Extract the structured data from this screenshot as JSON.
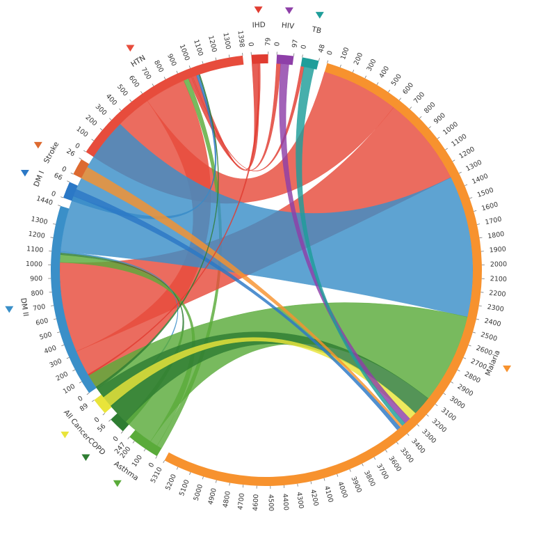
{
  "diagram": {
    "type": "chord",
    "nodes": [
      {
        "id": "IHD",
        "label": "IHD",
        "total": 79,
        "color": "#e03c31",
        "ticks": [
          0,
          79
        ]
      },
      {
        "id": "HIV",
        "label": "HIV",
        "total": 97,
        "color": "#8e3fa8",
        "ticks": [
          0,
          97
        ]
      },
      {
        "id": "TB",
        "label": "TB",
        "total": 48,
        "color": "#1f9e9a",
        "ticks": [
          0,
          48
        ]
      },
      {
        "id": "Malaria",
        "label": "Malaria",
        "total": 5310,
        "color": "#f7922e",
        "ticks": [
          0,
          100,
          200,
          300,
          400,
          500,
          600,
          700,
          800,
          900,
          1000,
          1100,
          1200,
          1300,
          1400,
          1500,
          1600,
          1700,
          1800,
          1900,
          2000,
          2100,
          2200,
          2300,
          2400,
          2500,
          2600,
          2700,
          2800,
          2900,
          3000,
          3100,
          3200,
          3300,
          3400,
          3500,
          3600,
          3700,
          3800,
          3900,
          4000,
          4100,
          4200,
          4300,
          4400,
          4500,
          4600,
          4700,
          4800,
          4900,
          5000,
          5100,
          5200,
          5310
        ]
      },
      {
        "id": "Asthma",
        "label": "Asthma",
        "total": 247,
        "color": "#5aab3a",
        "ticks": [
          0,
          100,
          200,
          247
        ]
      },
      {
        "id": "COPD",
        "label": "COPD",
        "total": 56,
        "color": "#2e7d32",
        "ticks": [
          0,
          56
        ]
      },
      {
        "id": "AllCancer",
        "label": "All Cancer",
        "total": 89,
        "color": "#e9e43a",
        "ticks": [
          0,
          89
        ]
      },
      {
        "id": "DMII",
        "label": "DM II",
        "total": 1440,
        "color": "#3a8fc8",
        "ticks": [
          0,
          100,
          200,
          300,
          400,
          500,
          600,
          700,
          800,
          900,
          1000,
          1100,
          1200,
          1300,
          1440
        ]
      },
      {
        "id": "DMI",
        "label": "DM I",
        "total": 66,
        "color": "#2b78c6",
        "ticks": [
          0,
          66
        ]
      },
      {
        "id": "Stroke",
        "label": "Stroke",
        "total": 26,
        "color": "#dd6a30",
        "ticks": [
          0,
          26
        ]
      },
      {
        "id": "HTN",
        "label": "HTN",
        "total": 1398,
        "color": "#e74c3c",
        "ticks": [
          0,
          100,
          200,
          300,
          400,
          500,
          600,
          700,
          800,
          900,
          1000,
          1100,
          1200,
          1300,
          1398
        ]
      }
    ],
    "links": [
      {
        "source": "HTN",
        "target": "Malaria",
        "value": 600,
        "color": "#e74c3c"
      },
      {
        "source": "HTN",
        "target": "DMII",
        "value": 320,
        "color": "#e74c3c"
      },
      {
        "source": "HTN",
        "target": "Asthma",
        "value": 40,
        "color": "#5aab3a"
      },
      {
        "source": "HTN",
        "target": "HIV",
        "value": 25,
        "color": "#e03c31"
      },
      {
        "source": "HTN",
        "target": "TB",
        "value": 10,
        "color": "#e03c31"
      },
      {
        "source": "HTN",
        "target": "IHD",
        "value": 30,
        "color": "#e03c31"
      },
      {
        "source": "HTN",
        "target": "DMI",
        "value": 20,
        "color": "#2b78c6"
      },
      {
        "source": "DMII",
        "target": "Malaria",
        "value": 700,
        "color": "#e74c3c"
      },
      {
        "source": "DMII",
        "target": "Asthma",
        "value": 60,
        "color": "#5aab3a"
      },
      {
        "source": "DMII",
        "target": "COPD",
        "value": 15,
        "color": "#2e7d32"
      },
      {
        "source": "DMII",
        "target": "AllCancer",
        "value": 10,
        "color": "#3a8fc8"
      },
      {
        "source": "Malaria",
        "target": "DMII",
        "value": 1100,
        "color": "#3a8fc8"
      },
      {
        "source": "Malaria",
        "target": "Asthma",
        "value": 700,
        "color": "#5aab3a"
      },
      {
        "source": "Malaria",
        "target": "COPD",
        "value": 150,
        "color": "#2e7d32"
      },
      {
        "source": "Malaria",
        "target": "AllCancer",
        "value": 60,
        "color": "#e9e43a"
      },
      {
        "source": "Malaria",
        "target": "HIV",
        "value": 50,
        "color": "#8e3fa8"
      },
      {
        "source": "Malaria",
        "target": "TB",
        "value": 30,
        "color": "#1f9e9a"
      },
      {
        "source": "Malaria",
        "target": "Stroke",
        "value": 20,
        "color": "#f7922e"
      },
      {
        "source": "DMI",
        "target": "Malaria",
        "value": 30,
        "color": "#2b78c6"
      },
      {
        "source": "IHD",
        "target": "Asthma",
        "value": 10,
        "color": "#e03c31"
      },
      {
        "source": "COPD",
        "target": "HTN",
        "value": 8,
        "color": "#2e7d32"
      }
    ]
  }
}
